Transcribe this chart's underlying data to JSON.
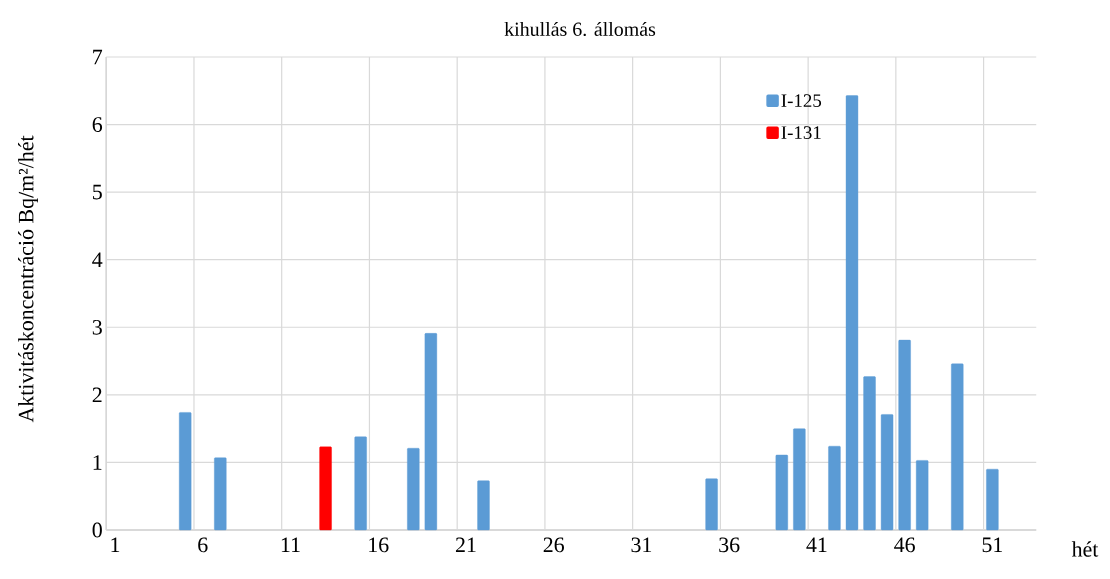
{
  "chart_data": {
    "type": "bar",
    "title": "kihullás 6. állomás",
    "xlabel": "hét",
    "ylabel": "Aktivitáskoncentráció Bq/m²/hét",
    "categories": [
      "1",
      null,
      null,
      null,
      null,
      "6",
      null,
      null,
      null,
      null,
      "11",
      null,
      null,
      null,
      null,
      "16",
      null,
      null,
      null,
      null,
      "21",
      null,
      null,
      null,
      null,
      "26",
      null,
      null,
      null,
      null,
      "31",
      null,
      null,
      null,
      null,
      "36",
      null,
      null,
      null,
      null,
      "41",
      null,
      null,
      null,
      null,
      "46",
      null,
      null,
      null,
      null,
      "51",
      null,
      null
    ],
    "series": [
      {
        "name": "I-125",
        "color": "#5b9bd5",
        "values": [
          null,
          null,
          null,
          null,
          1.74,
          null,
          1.07,
          null,
          null,
          null,
          null,
          null,
          null,
          null,
          1.38,
          null,
          null,
          1.21,
          2.91,
          null,
          null,
          0.73,
          null,
          null,
          null,
          null,
          null,
          null,
          null,
          null,
          null,
          null,
          null,
          null,
          0.76,
          null,
          null,
          null,
          1.11,
          1.5,
          null,
          1.24,
          6.43,
          2.27,
          1.71,
          2.81,
          1.03,
          null,
          2.46,
          null,
          0.9,
          null,
          null
        ]
      },
      {
        "name": "I-131",
        "color": "#ff0000",
        "values": [
          null,
          null,
          null,
          null,
          null,
          null,
          null,
          null,
          null,
          null,
          null,
          null,
          1.23,
          null,
          null,
          null,
          null,
          null,
          null,
          null,
          null,
          null,
          null,
          null,
          null,
          null,
          null,
          null,
          null,
          null,
          null,
          null,
          null,
          null,
          null,
          null,
          null,
          null,
          null,
          null,
          null,
          null,
          null,
          null,
          null,
          null,
          null,
          null,
          null,
          null,
          null,
          null,
          null
        ]
      }
    ],
    "ylim": [
      0,
      7
    ],
    "yticks": [
      0,
      1,
      2,
      3,
      4,
      5,
      6,
      7
    ],
    "grid": true,
    "legend": "top right"
  }
}
